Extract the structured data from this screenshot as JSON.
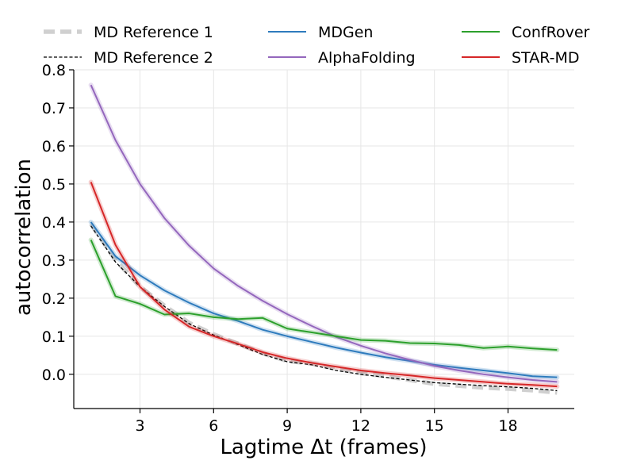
{
  "chart_data": {
    "type": "line",
    "title": "",
    "xlabel": "Lagtime Δt (frames)",
    "ylabel": "autocorrelation",
    "xlim": [
      0.3,
      20.7
    ],
    "ylim": [
      -0.09,
      0.8
    ],
    "xticks": [
      3,
      6,
      9,
      12,
      15,
      18
    ],
    "yticks": [
      0.0,
      0.1,
      0.2,
      0.3,
      0.4,
      0.5,
      0.6,
      0.7,
      0.8
    ],
    "ytick_labels": [
      "0.0",
      "0.1",
      "0.2",
      "0.3",
      "0.4",
      "0.5",
      "0.6",
      "0.7",
      "0.8"
    ],
    "grid": true,
    "legend_position": "top",
    "series": [
      {
        "name": "MD Reference 1",
        "color": "#c8c8c8",
        "style": "dashed-thick",
        "x": [
          1,
          2,
          3,
          4,
          5,
          6,
          7,
          8,
          9,
          10,
          11,
          12,
          13,
          14,
          15,
          16,
          17,
          18,
          19,
          20
        ],
        "values": [
          0.395,
          0.3,
          0.23,
          0.18,
          0.135,
          0.105,
          0.08,
          0.055,
          0.035,
          0.028,
          0.015,
          0.003,
          -0.005,
          -0.015,
          -0.025,
          -0.03,
          -0.035,
          -0.038,
          -0.042,
          -0.048
        ]
      },
      {
        "name": "MD Reference 2",
        "color": "#000000",
        "style": "dashed-thin",
        "x": [
          1,
          2,
          3,
          4,
          5,
          6,
          7,
          8,
          9,
          10,
          11,
          12,
          13,
          14,
          15,
          16,
          17,
          18,
          19,
          20
        ],
        "values": [
          0.39,
          0.295,
          0.23,
          0.178,
          0.133,
          0.103,
          0.078,
          0.052,
          0.033,
          0.025,
          0.01,
          0.0,
          -0.008,
          -0.015,
          -0.022,
          -0.026,
          -0.03,
          -0.033,
          -0.037,
          -0.043
        ]
      },
      {
        "name": "MDGen",
        "color": "#2e7bbd",
        "style": "solid",
        "x": [
          1,
          2,
          3,
          4,
          5,
          6,
          7,
          8,
          9,
          10,
          11,
          12,
          13,
          14,
          15,
          16,
          17,
          18,
          19,
          20
        ],
        "values": [
          0.4,
          0.31,
          0.26,
          0.22,
          0.188,
          0.16,
          0.14,
          0.117,
          0.1,
          0.085,
          0.07,
          0.057,
          0.045,
          0.035,
          0.025,
          0.017,
          0.01,
          0.003,
          -0.005,
          -0.008
        ]
      },
      {
        "name": "AlphaFolding",
        "color": "#9467bd",
        "style": "solid",
        "x": [
          1,
          2,
          3,
          4,
          5,
          6,
          7,
          8,
          9,
          10,
          11,
          12,
          13,
          14,
          15,
          16,
          17,
          18,
          19,
          20
        ],
        "values": [
          0.76,
          0.615,
          0.5,
          0.41,
          0.338,
          0.278,
          0.232,
          0.193,
          0.158,
          0.127,
          0.098,
          0.075,
          0.055,
          0.038,
          0.022,
          0.01,
          0.0,
          -0.008,
          -0.015,
          -0.02
        ]
      },
      {
        "name": "ConfRover",
        "color": "#2ca02c",
        "style": "solid",
        "x": [
          1,
          2,
          3,
          4,
          5,
          6,
          7,
          8,
          9,
          10,
          11,
          12,
          13,
          14,
          15,
          16,
          17,
          18,
          19,
          20
        ],
        "values": [
          0.353,
          0.205,
          0.185,
          0.157,
          0.16,
          0.15,
          0.145,
          0.148,
          0.12,
          0.11,
          0.1,
          0.09,
          0.088,
          0.082,
          0.081,
          0.077,
          0.069,
          0.073,
          0.068,
          0.064
        ]
      },
      {
        "name": "STAR-MD",
        "color": "#d62728",
        "style": "solid",
        "x": [
          1,
          2,
          3,
          4,
          5,
          6,
          7,
          8,
          9,
          10,
          11,
          12,
          13,
          14,
          15,
          16,
          17,
          18,
          19,
          20
        ],
        "values": [
          0.505,
          0.34,
          0.23,
          0.17,
          0.125,
          0.1,
          0.08,
          0.058,
          0.042,
          0.03,
          0.02,
          0.01,
          0.003,
          -0.003,
          -0.01,
          -0.015,
          -0.02,
          -0.025,
          -0.028,
          -0.032
        ]
      }
    ]
  }
}
